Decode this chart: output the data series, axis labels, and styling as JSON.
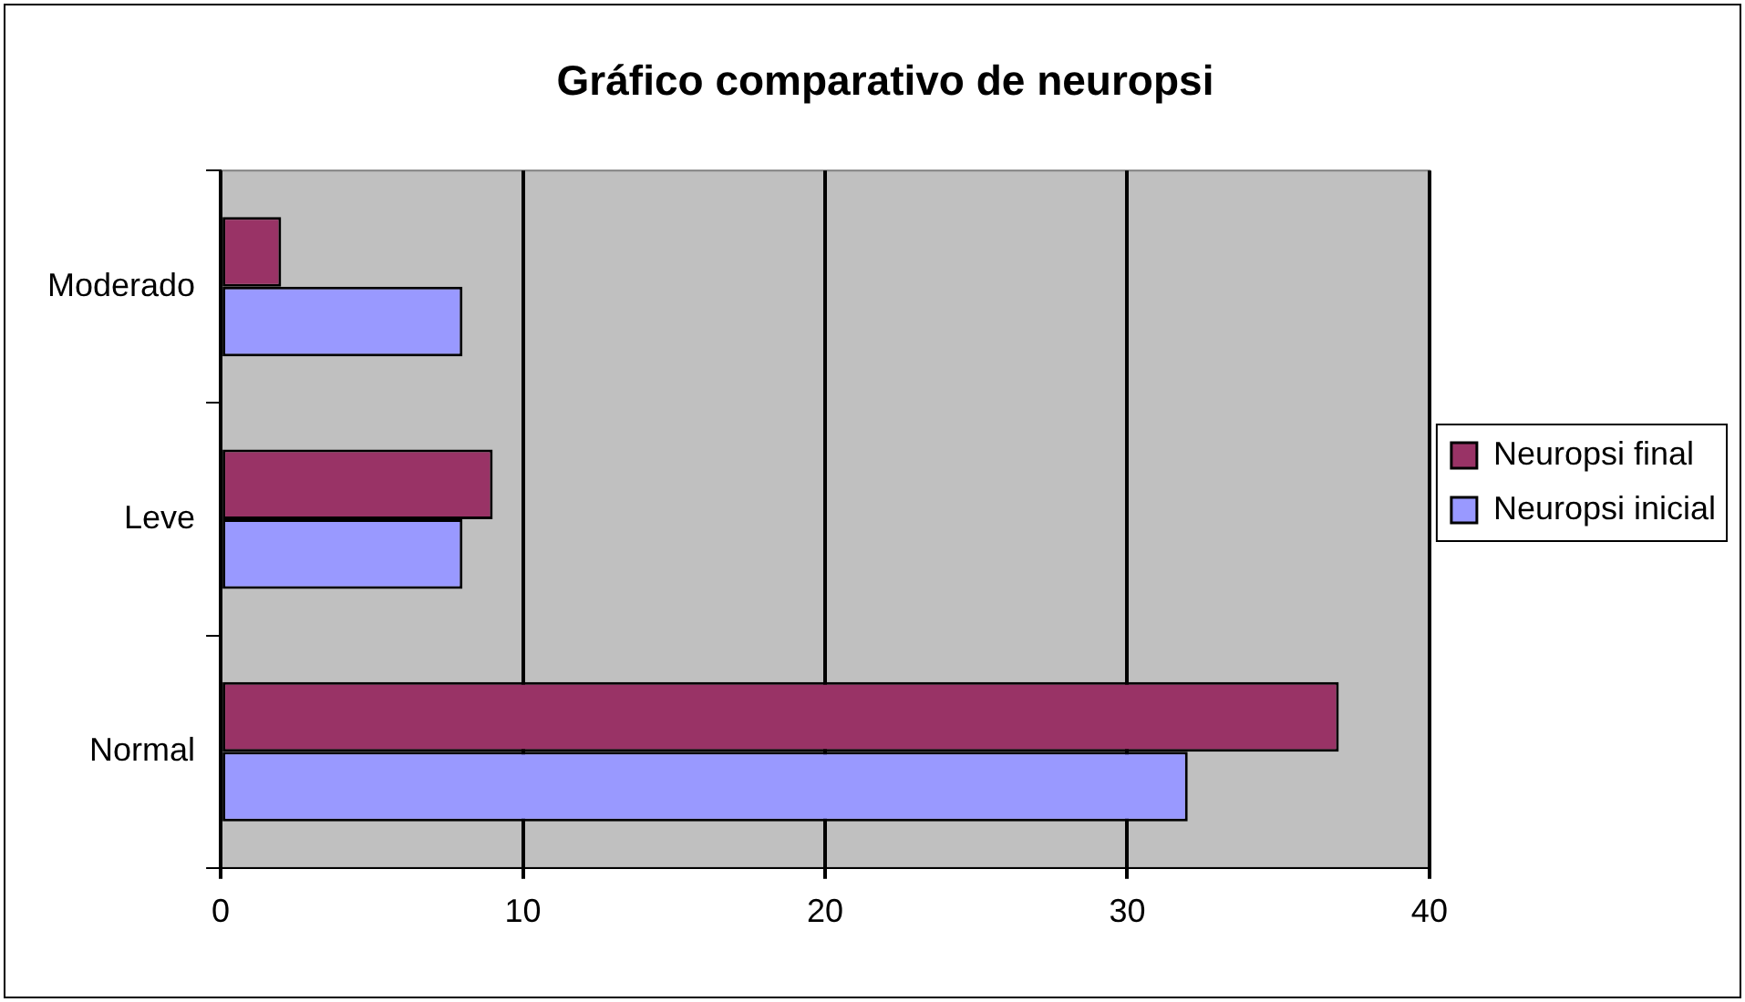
{
  "chart_data": {
    "type": "bar",
    "orientation": "horizontal",
    "title": "Gráfico comparativo de neuropsi",
    "categories": [
      "Moderado",
      "Leve",
      "Normal"
    ],
    "series": [
      {
        "name": "Neuropsi final",
        "color": "#993366",
        "values": [
          2,
          9,
          37
        ]
      },
      {
        "name": "Neuropsi inicial",
        "color": "#9999ff",
        "values": [
          8,
          8,
          32
        ]
      }
    ],
    "xlim": [
      0,
      40
    ],
    "xticks": [
      0,
      10,
      20,
      30,
      40
    ],
    "grid": "x",
    "legend": "right"
  }
}
